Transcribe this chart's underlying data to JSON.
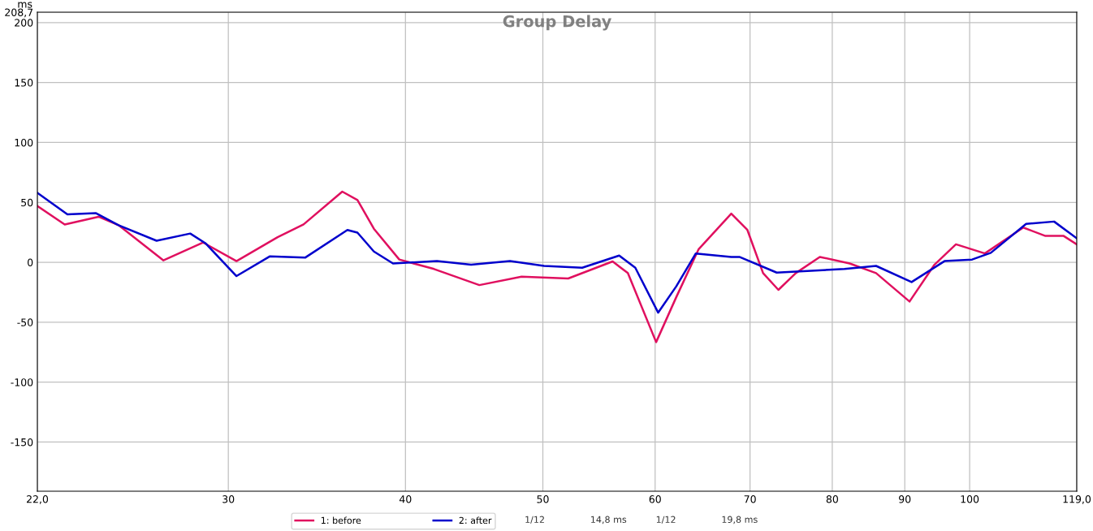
{
  "chart_data": {
    "type": "line",
    "title": "Group Delay",
    "ylabel": "ms",
    "log": "x",
    "grid": true,
    "legend": "bottom",
    "line_style": "solid",
    "xlim": [
      22,
      119
    ],
    "xticks": [
      {
        "value": 22,
        "label": "22,0"
      },
      30,
      40,
      50,
      60,
      70,
      80,
      90,
      100,
      {
        "value": 119,
        "label": "119,0"
      }
    ],
    "ylim": [
      -191,
      208.7
    ],
    "yticks": [
      -150,
      -100,
      -50,
      0,
      50,
      100,
      150,
      200,
      {
        "value": 208.7,
        "label": "208,7"
      }
    ],
    "annotations": [
      "1/12",
      "14,8 ms",
      "1/12",
      "19,8 ms"
    ],
    "series": [
      {
        "name": "1: before",
        "color": "#e0105f",
        "x": [
          22,
          23.0,
          24.3,
          25.1,
          27.0,
          28.8,
          30.4,
          32.5,
          33.9,
          36.1,
          37.0,
          38.0,
          39.6,
          41.9,
          45.1,
          48.3,
          52.1,
          56.0,
          57.4,
          60.1,
          62.1,
          64.4,
          67.9,
          69.7,
          71.5,
          73.3,
          75.4,
          78.4,
          82.3,
          85.9,
          90.7,
          94.4,
          97.8,
          102.5,
          109.1,
          113.1,
          116.5,
          119
        ],
        "values": [
          47,
          31.6,
          38,
          31,
          1.6,
          16.5,
          1,
          21,
          31.6,
          59,
          52,
          28,
          2.3,
          -5.6,
          -19,
          -12,
          -13.5,
          0.7,
          -9,
          -66.6,
          -29,
          11,
          40.6,
          27,
          -9,
          -23,
          -9,
          4.5,
          -1,
          -9,
          -32.7,
          -2.3,
          15,
          7.4,
          29,
          22,
          22,
          15
        ]
      },
      {
        "name": "2: after",
        "color": "#0000cc",
        "x": [
          22,
          23.1,
          24.2,
          25.1,
          26.7,
          28.2,
          28.9,
          30.4,
          32.1,
          34.0,
          36.4,
          37.0,
          38.0,
          39.2,
          42.1,
          44.5,
          47.4,
          50.1,
          53.3,
          56.6,
          58.1,
          60.3,
          62.1,
          64.1,
          67.9,
          68.8,
          73.1,
          81.6,
          85.9,
          91.0,
          96.0,
          100.4,
          103.5,
          109.6,
          114.7,
          119
        ],
        "values": [
          58,
          40,
          41,
          31,
          18,
          24,
          16,
          -11.5,
          5,
          4,
          27,
          24.8,
          9,
          -1,
          1,
          -2,
          1,
          -3,
          -4.5,
          5.6,
          -4.5,
          -42,
          -20,
          7.4,
          4.5,
          4.5,
          -8.6,
          -5.6,
          -3,
          -16.5,
          1,
          2.3,
          7.9,
          32,
          34,
          20
        ]
      }
    ]
  }
}
